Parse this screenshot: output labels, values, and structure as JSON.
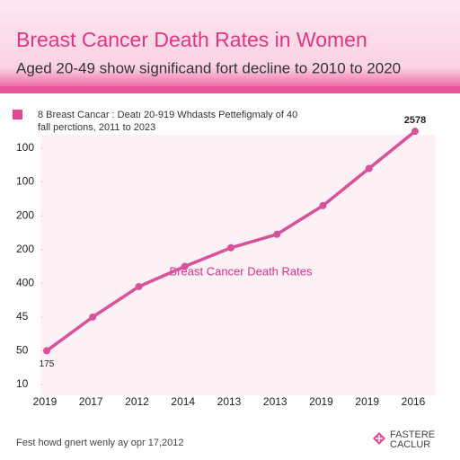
{
  "chart_data": {
    "type": "line",
    "title": "Breast Cancer Death Rates in Women",
    "subtitle": "Aged 20-49 show significand fort decline to 2010 to 2020",
    "legend_text": [
      "8 Breast Cancar : Deatı 20-919 Whdasts Pettefigmaly of 40",
      "fall perctions, 2011 to 2023"
    ],
    "categories": [
      "2019",
      "2017",
      "2012",
      "2014",
      "2013",
      "2013",
      "2019",
      "2019",
      "2016"
    ],
    "series": [
      {
        "name": "Breast Cancer Death Rates",
        "color": "#d9519a",
        "values": [
          1,
          2,
          2.9,
          3.5,
          4.05,
          4.45,
          5.3,
          6.4,
          7.5
        ]
      }
    ],
    "annotations": [
      "2578",
      "175"
    ],
    "ylim": [
      -0.5,
      7.6
    ],
    "yticks": [
      {
        "value": 0,
        "label": "10"
      },
      {
        "value": 1,
        "label": "50"
      },
      {
        "value": 2,
        "label": "45"
      },
      {
        "value": 3,
        "label": "400"
      },
      {
        "value": 4,
        "label": "200"
      },
      {
        "value": 5,
        "label": "200"
      },
      {
        "value": 6,
        "label": "100"
      },
      {
        "value": 7,
        "label": "100"
      }
    ],
    "footer": "Fest howd gnert wenly ay opr 17,2012",
    "logo": [
      "FASTERE",
      "CACLUR"
    ]
  }
}
